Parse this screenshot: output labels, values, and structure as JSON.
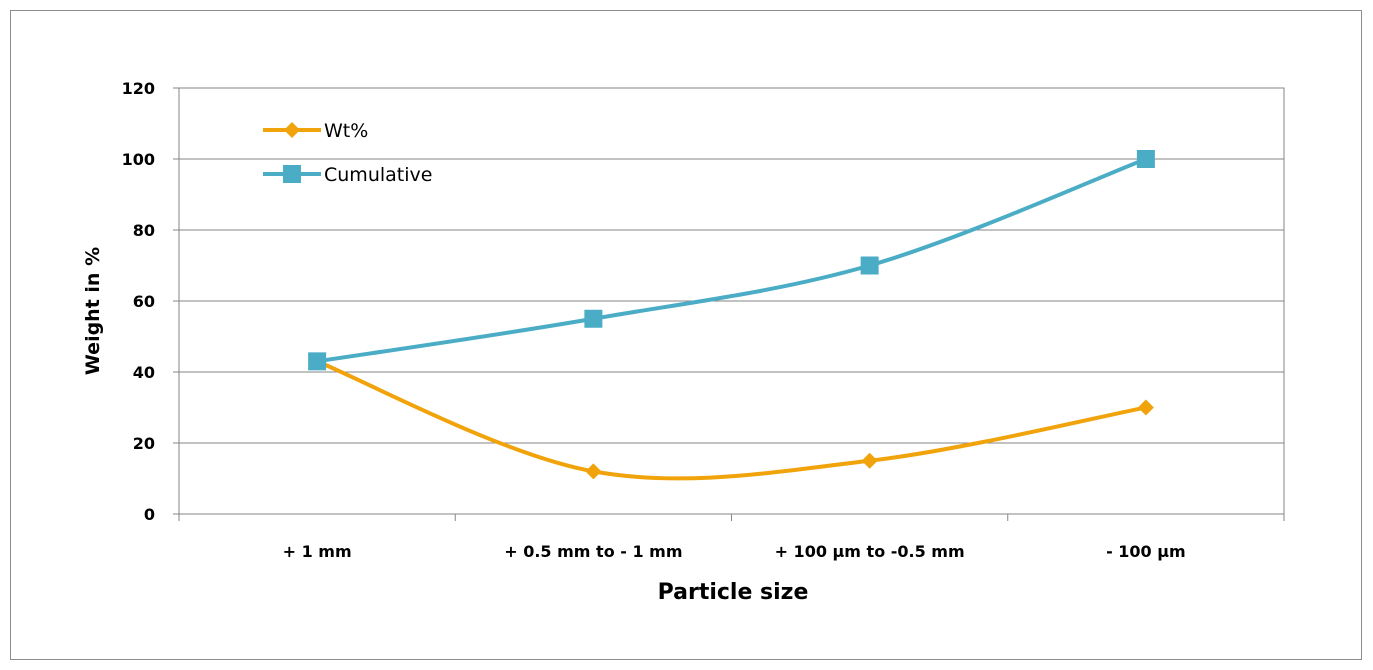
{
  "chart_data": {
    "type": "line",
    "title": "",
    "xlabel": "Particle size",
    "ylabel": "Weight in %",
    "categories": [
      "+ 1 mm",
      "+ 0.5 mm to - 1 mm",
      "+ 100 µm to -0.5 mm",
      "- 100 µm"
    ],
    "ylim": [
      0,
      120
    ],
    "yticks": [
      "0",
      "20",
      "40",
      "60",
      "80",
      "100",
      "120"
    ],
    "grid": true,
    "smoothed": true,
    "legend_position": "top-left inside plot",
    "series": [
      {
        "name": "Wt%",
        "values": [
          43,
          12,
          15,
          30
        ],
        "color": "#F0A30A",
        "marker": "diamond"
      },
      {
        "name": "Cumulative",
        "values": [
          43,
          55,
          70,
          100
        ],
        "color": "#4BACC6",
        "marker": "square"
      }
    ]
  }
}
